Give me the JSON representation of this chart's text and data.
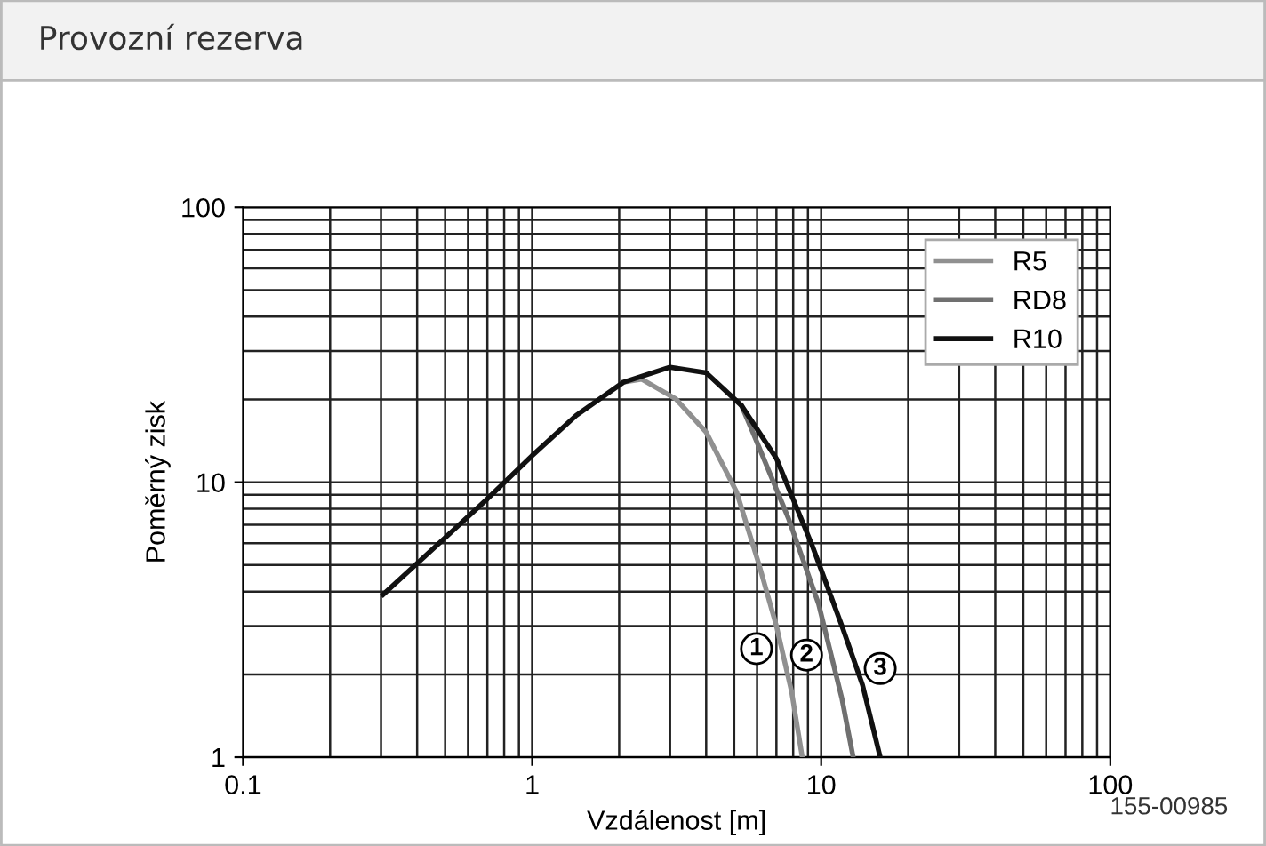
{
  "chart_data": {
    "type": "line",
    "title": "Provozní rezerva",
    "xlabel": "Vzdálenost [m]",
    "ylabel": "Poměrný zisk",
    "log": "xy",
    "xlim": [
      0.1,
      100
    ],
    "ylim": [
      1,
      100
    ],
    "xticks": [
      0.1,
      1,
      10,
      100
    ],
    "yticks": [
      1,
      10,
      100
    ],
    "grid": true,
    "legend": "top right",
    "line_style": "solid",
    "marker": "none",
    "series": [
      {
        "name": "R5",
        "color": "#909090",
        "x": [
          2.07,
          2.39,
          3.14,
          4.0,
          5.1,
          6.1,
          7.0,
          7.9,
          8.6
        ],
        "values": [
          23.1,
          23.7,
          20.1,
          15.2,
          9.2,
          5.0,
          3.0,
          1.73,
          1.0
        ]
      },
      {
        "name": "RD8",
        "color": "#707070",
        "x": [
          5.3,
          5.8,
          7.7,
          9.8,
          11.8,
          12.9
        ],
        "values": [
          19,
          15.2,
          7.4,
          3.6,
          1.63,
          1.0
        ]
      },
      {
        "name": "R10",
        "color": "#111111",
        "x": [
          0.305,
          0.7,
          1.0,
          1.42,
          2.07,
          3.0,
          4.0,
          5.3,
          7.0,
          9.3,
          11.8,
          13.9,
          16.0
        ],
        "values": [
          3.9,
          8.7,
          12.5,
          17.5,
          23.1,
          26.2,
          25,
          19,
          12.2,
          5.9,
          3.0,
          1.83,
          1.0
        ]
      }
    ],
    "annotations": [
      {
        "text": "1",
        "x": 5.97,
        "y": 2.48
      },
      {
        "text": "2",
        "x": 8.9,
        "y": 2.35
      },
      {
        "text": "3",
        "x": 16,
        "y": 2.1
      },
      "155-00985"
    ]
  }
}
